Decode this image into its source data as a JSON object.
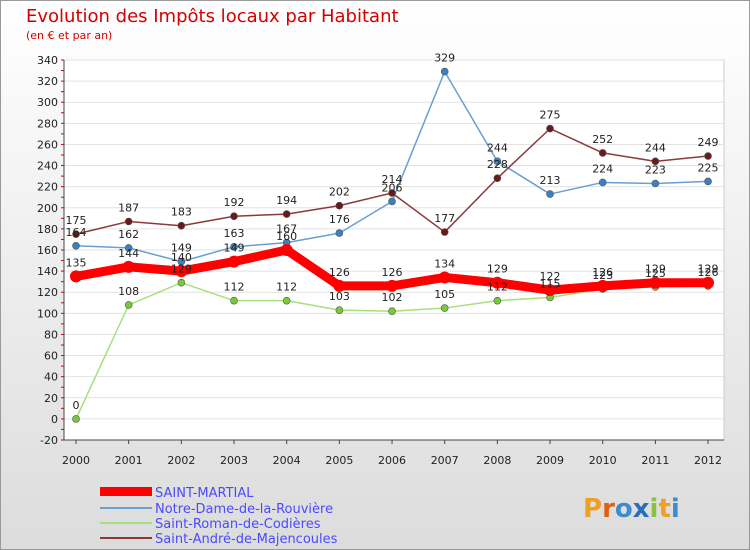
{
  "chart_data": {
    "type": "line",
    "title": "Evolution des Impôts locaux par Habitant",
    "subtitle": "(en € et par an)",
    "categories": [
      "2000",
      "2001",
      "2002",
      "2003",
      "2004",
      "2005",
      "2006",
      "2007",
      "2008",
      "2009",
      "2010",
      "2011",
      "2012"
    ],
    "ylim": [
      -20,
      340
    ],
    "yticks": [
      -20,
      0,
      20,
      40,
      60,
      80,
      100,
      120,
      140,
      160,
      180,
      200,
      220,
      240,
      260,
      280,
      300,
      320,
      340
    ],
    "series": [
      {
        "name": "SAINT-MARTIAL",
        "color": "#ff0000",
        "marker_color": "#ff0000",
        "values": [
          135,
          144,
          140,
          149,
          160,
          126,
          126,
          134,
          129,
          122,
          126,
          129,
          129
        ],
        "labels": [
          "135",
          "144",
          "140",
          "149",
          "160",
          "126",
          "126",
          "134",
          "129",
          "122",
          "126",
          "129",
          "129"
        ]
      },
      {
        "name": "Notre-Dame-de-la-Rouvière",
        "color": "#6a9fd0",
        "marker_color": "#3d7fc4",
        "values": [
          164,
          162,
          149,
          163,
          167,
          176,
          206,
          329,
          244,
          213,
          224,
          223,
          225
        ],
        "labels": [
          "164",
          "162",
          "149",
          "163",
          "167",
          "176",
          "206",
          "329",
          "244",
          "213",
          "224",
          "223",
          "225"
        ]
      },
      {
        "name": "Saint-Roman-de-Codières",
        "color": "#a6e07e",
        "marker_color": "#78c83c",
        "values": [
          0,
          108,
          129,
          112,
          112,
          103,
          102,
          105,
          112,
          115,
          123,
          125,
          126
        ],
        "labels": [
          "0",
          "108",
          "129",
          "112",
          "112",
          "103",
          "102",
          "105",
          "112",
          "115",
          "123",
          "125",
          "126"
        ]
      },
      {
        "name": "Saint-André-de-Majencoules",
        "color": "#8b3a3a",
        "marker_color": "#6b1a1a",
        "values": [
          175,
          187,
          183,
          192,
          194,
          202,
          214,
          177,
          228,
          275,
          252,
          244,
          249
        ],
        "labels": [
          "175",
          "187",
          "183",
          "192",
          "194",
          "202",
          "214",
          "177",
          "228",
          "275",
          "252",
          "244",
          "249"
        ]
      }
    ]
  },
  "logo": {
    "text": "Proxiti"
  }
}
